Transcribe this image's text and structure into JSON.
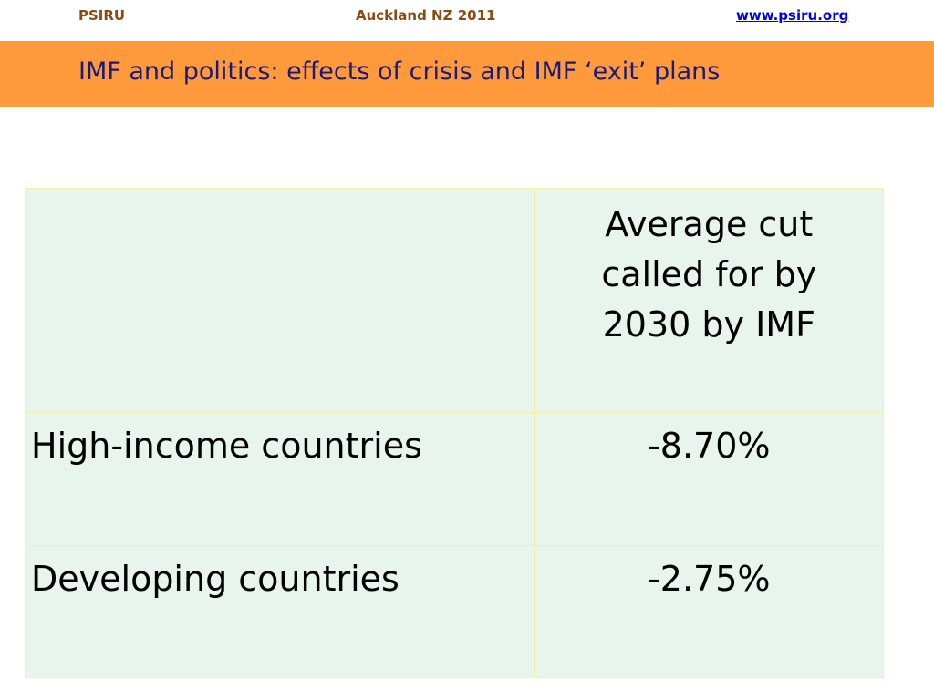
{
  "header": {
    "left": "PSIRU",
    "center": "Auckland NZ 2011",
    "right": "www.psiru.org"
  },
  "title": "IMF and politics: effects of crisis and  IMF ‘exit’ plans",
  "table": {
    "corner": "",
    "column_header": "Average cut called for by 2030 by IMF",
    "rows": [
      {
        "label": "High-income countries",
        "value": "-8.70%"
      },
      {
        "label": "Developing countries",
        "value": "-2.75%"
      }
    ]
  }
}
